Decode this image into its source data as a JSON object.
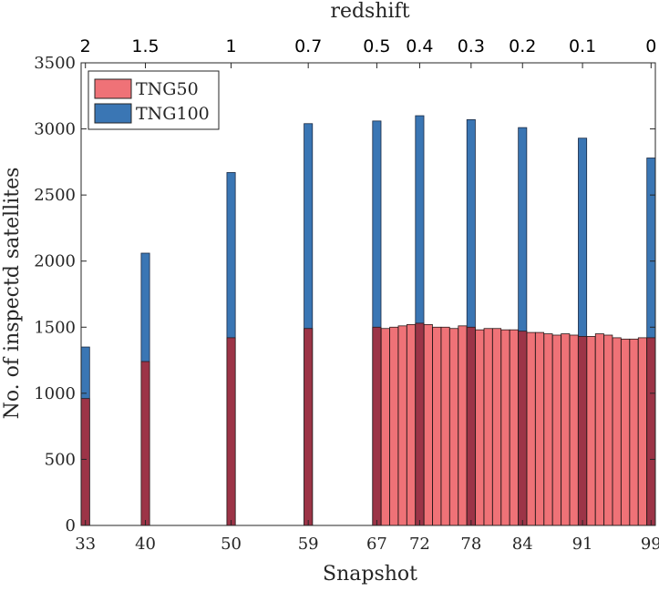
{
  "chart_data": {
    "type": "bar",
    "xlabel": "Snapshot",
    "ylabel": "No. of inspectd satellites",
    "top_axis_label": "redshift",
    "x_range": [
      32.5,
      99.5
    ],
    "ylim": [
      0,
      3500
    ],
    "yticks": [
      0,
      500,
      1000,
      1500,
      2000,
      2500,
      3000,
      3500
    ],
    "xticks": [
      33,
      40,
      50,
      59,
      67,
      72,
      78,
      84,
      91,
      99
    ],
    "top_ticks": [
      {
        "snapshot": 33,
        "label": "2"
      },
      {
        "snapshot": 40,
        "label": "1.5"
      },
      {
        "snapshot": 50,
        "label": "1"
      },
      {
        "snapshot": 59,
        "label": "0.7"
      },
      {
        "snapshot": 67,
        "label": "0.5"
      },
      {
        "snapshot": 72,
        "label": "0.4"
      },
      {
        "snapshot": 78,
        "label": "0.3"
      },
      {
        "snapshot": 84,
        "label": "0.2"
      },
      {
        "snapshot": 91,
        "label": "0.1"
      },
      {
        "snapshot": 99,
        "label": "0"
      }
    ],
    "legend_position": "top-left",
    "series": [
      {
        "name": "TNG100",
        "color": "#3a76b4",
        "x": [
          33,
          40,
          50,
          59,
          67,
          72,
          78,
          84,
          91,
          99
        ],
        "values": [
          1350,
          2060,
          2670,
          3040,
          3060,
          3100,
          3070,
          3010,
          2930,
          2780
        ]
      },
      {
        "name": "TNG50",
        "color": "#ef7277",
        "x": [
          33,
          40,
          50,
          59,
          67,
          68,
          69,
          70,
          71,
          72,
          73,
          74,
          75,
          76,
          77,
          78,
          79,
          80,
          81,
          82,
          83,
          84,
          85,
          86,
          87,
          88,
          89,
          90,
          91,
          92,
          93,
          94,
          95,
          96,
          97,
          98,
          99
        ],
        "values": [
          960,
          1240,
          1420,
          1490,
          1500,
          1490,
          1500,
          1510,
          1520,
          1530,
          1520,
          1500,
          1500,
          1490,
          1510,
          1500,
          1480,
          1490,
          1490,
          1480,
          1480,
          1470,
          1460,
          1460,
          1450,
          1440,
          1450,
          1440,
          1430,
          1430,
          1450,
          1440,
          1420,
          1410,
          1410,
          1420,
          1420
        ]
      }
    ],
    "overlap_color": "#9c3447"
  }
}
